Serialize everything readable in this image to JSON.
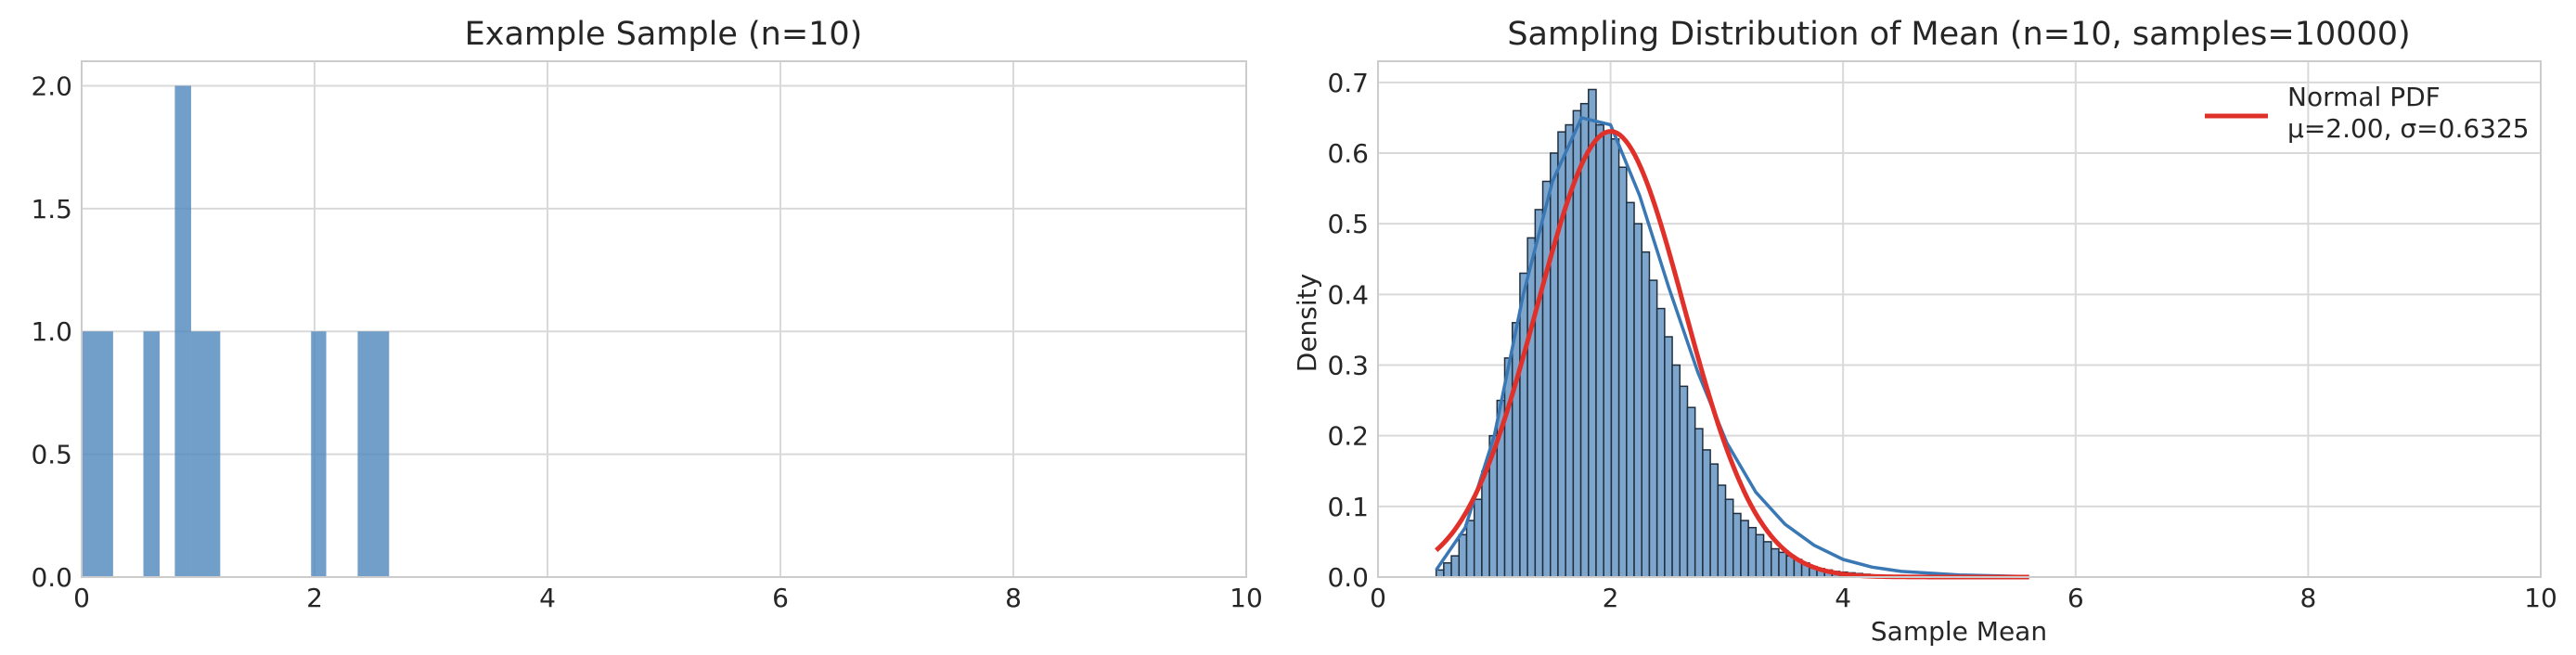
{
  "chart_data": [
    {
      "type": "bar",
      "title": "Example Sample (n=10)",
      "xlabel": "",
      "ylabel": "",
      "xlim": [
        0,
        10
      ],
      "ylim": [
        0,
        2.1
      ],
      "xticks": [
        "0",
        "2",
        "4",
        "6",
        "8",
        "10"
      ],
      "yticks": [
        "0.0",
        "0.5",
        "1.0",
        "1.5",
        "2.0"
      ],
      "grid": true,
      "bar_color": "#4f87bd",
      "bins": [
        {
          "x0": 0.0,
          "x1": 0.27,
          "count": 1
        },
        {
          "x0": 0.53,
          "x1": 0.67,
          "count": 1
        },
        {
          "x0": 0.8,
          "x1": 0.94,
          "count": 2
        },
        {
          "x0": 0.94,
          "x1": 1.19,
          "count": 1
        },
        {
          "x0": 1.97,
          "x1": 2.1,
          "count": 1
        },
        {
          "x0": 2.37,
          "x1": 2.64,
          "count": 1
        }
      ]
    },
    {
      "type": "bar",
      "title": "Sampling Distribution of Mean (n=10, samples=10000)",
      "xlabel": "Sample Mean",
      "ylabel": "Density",
      "xlim": [
        0,
        10
      ],
      "ylim": [
        0,
        0.73
      ],
      "xticks": [
        "0",
        "2",
        "4",
        "6",
        "8",
        "10"
      ],
      "yticks": [
        "0.0",
        "0.1",
        "0.2",
        "0.3",
        "0.4",
        "0.5",
        "0.6",
        "0.7"
      ],
      "grid": true,
      "legend_position": "top-right",
      "hist_color": "#7ea6cc",
      "hist_edge_color": "#1f2f3f",
      "kde_color": "#3a78b5",
      "normal_color": "#e0302a",
      "hist_bins_x0": 0.5,
      "hist_bin_width": 0.0655,
      "hist_density": [
        0.01,
        0.02,
        0.03,
        0.06,
        0.08,
        0.11,
        0.15,
        0.2,
        0.25,
        0.31,
        0.36,
        0.43,
        0.48,
        0.52,
        0.56,
        0.6,
        0.63,
        0.64,
        0.66,
        0.67,
        0.69,
        0.64,
        0.63,
        0.62,
        0.58,
        0.53,
        0.5,
        0.46,
        0.42,
        0.38,
        0.34,
        0.3,
        0.27,
        0.24,
        0.21,
        0.18,
        0.16,
        0.13,
        0.11,
        0.09,
        0.08,
        0.07,
        0.06,
        0.05,
        0.04,
        0.035,
        0.03,
        0.025,
        0.02,
        0.015,
        0.012,
        0.01,
        0.008,
        0.007,
        0.006,
        0.005,
        0.004,
        0.003
      ],
      "kde": {
        "x": [
          0.5,
          0.75,
          1.0,
          1.25,
          1.5,
          1.75,
          2.0,
          2.25,
          2.5,
          2.75,
          3.0,
          3.25,
          3.5,
          3.75,
          4.0,
          4.25,
          4.5,
          5.0,
          5.5
        ],
        "y": [
          0.01,
          0.07,
          0.2,
          0.4,
          0.56,
          0.65,
          0.64,
          0.54,
          0.41,
          0.29,
          0.19,
          0.12,
          0.075,
          0.045,
          0.025,
          0.014,
          0.008,
          0.003,
          0.001
        ]
      },
      "normal_pdf": {
        "mu": 2.0,
        "sigma": 0.6325,
        "x_range": [
          0.5,
          5.6
        ]
      },
      "legend": {
        "label_line1": "Normal PDF",
        "label_line2": "μ=2.00, σ=0.6325"
      }
    }
  ]
}
